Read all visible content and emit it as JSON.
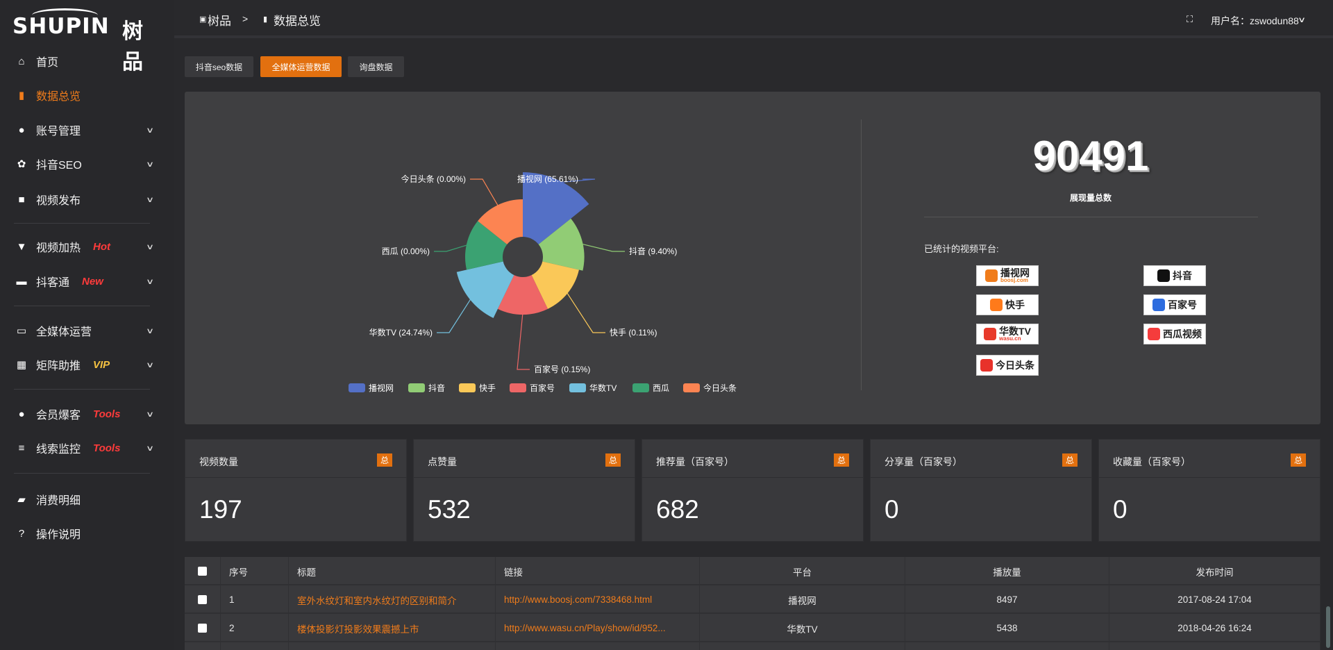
{
  "logo": {
    "en": "SHUPIN",
    "cn": "树品"
  },
  "header": {
    "breadcrumb": [
      "树品",
      ">",
      "数据总览"
    ],
    "username_label": "用户名：zswodun88"
  },
  "sidebar": {
    "items": [
      {
        "label": "首页",
        "icon": "home-icon"
      },
      {
        "label": "数据总览",
        "icon": "bar-chart-icon",
        "active": true
      },
      {
        "label": "账号管理",
        "icon": "user-icon",
        "chevron": true
      },
      {
        "label": "抖音SEO",
        "icon": "gear-icon",
        "chevron": true
      },
      {
        "label": "视频发布",
        "icon": "camera-icon",
        "chevron": true
      },
      {
        "label": "视频加热",
        "icon": "flag-icon",
        "chevron": true,
        "badge": "Hot",
        "badge_color": "#ff3b3b"
      },
      {
        "label": "抖客通",
        "icon": "chat-icon",
        "chevron": true,
        "badge": "New",
        "badge_color": "#ff3b3b"
      },
      {
        "label": "全媒体运营",
        "icon": "monitor-icon",
        "chevron": true
      },
      {
        "label": "矩阵助推",
        "icon": "grid-icon",
        "chevron": true,
        "badge": "VIP",
        "badge_color": "#f5c242"
      },
      {
        "label": "会员爆客",
        "icon": "user-icon",
        "chevron": true,
        "badge": "Tools",
        "badge_color": "#ff3b3b"
      },
      {
        "label": "线索监控",
        "icon": "sliders-icon",
        "chevron": true,
        "badge": "Tools",
        "badge_color": "#ff3b3b"
      },
      {
        "label": "消费明细",
        "icon": "wallet-icon"
      },
      {
        "label": "操作说明",
        "icon": "help-icon"
      }
    ]
  },
  "tabs": [
    {
      "label": "抖音seo数据"
    },
    {
      "label": "全媒体运营数据",
      "active": true
    },
    {
      "label": "询盘数据"
    }
  ],
  "chart_data": {
    "type": "pie",
    "rose": true,
    "categories": [
      "播视网",
      "抖音",
      "快手",
      "百家号",
      "华数TV",
      "西瓜",
      "今日头条"
    ],
    "values": [
      65.61,
      9.4,
      0.11,
      0.15,
      24.74,
      0.0,
      0.0
    ],
    "labels": [
      "播视网 (65.61%)",
      "抖音 (9.40%)",
      "快手 (0.11%)",
      "百家号 (0.15%)",
      "华数TV (24.74%)",
      "西瓜 (0.00%)",
      "今日头条 (0.00%)"
    ],
    "colors": [
      "#5470c6",
      "#91cc75",
      "#fac858",
      "#ee6666",
      "#73c0de",
      "#3ba272",
      "#fc8452"
    ],
    "legend_position": "bottom"
  },
  "summary": {
    "total": "90491",
    "total_label": "展现量总数",
    "platforms_label": "已统计的视频平台:",
    "platforms": [
      {
        "name": "播视网",
        "sub": "boosj.com",
        "color": "#f07c1b"
      },
      {
        "name": "抖音",
        "color": "#111"
      },
      {
        "name": "快手",
        "color": "#ff7a1a"
      },
      {
        "name": "百家号",
        "color": "#2d6cdf"
      },
      {
        "name": "华数TV",
        "sub": "wasu.cn",
        "color": "#e83a2b"
      },
      {
        "name": "西瓜视频",
        "color": "#f53c3c"
      },
      {
        "name": "今日头条",
        "color": "#e8322a"
      }
    ]
  },
  "cards": [
    {
      "title": "视频数量",
      "badge": "总",
      "value": "197"
    },
    {
      "title": "点赞量",
      "badge": "总",
      "value": "532"
    },
    {
      "title": "推荐量（百家号）",
      "badge": "总",
      "value": "682"
    },
    {
      "title": "分享量（百家号）",
      "badge": "总",
      "value": "0"
    },
    {
      "title": "收藏量（百家号）",
      "badge": "总",
      "value": "0"
    }
  ],
  "table": {
    "headers": [
      "序号",
      "标题",
      "链接",
      "平台",
      "播放量",
      "发布时间"
    ],
    "rows": [
      [
        "1",
        "室外水纹灯和室内水纹灯的区别和简介",
        "http://www.boosj.com/7338468.html",
        "播视网",
        "8497",
        "2017-08-24 17:04"
      ],
      [
        "2",
        "楼体投影灯投影效果震撼上市",
        "http://www.wasu.cn/Play/show/id/952...",
        "华数TV",
        "5438",
        "2018-04-26 16:24"
      ]
    ]
  }
}
